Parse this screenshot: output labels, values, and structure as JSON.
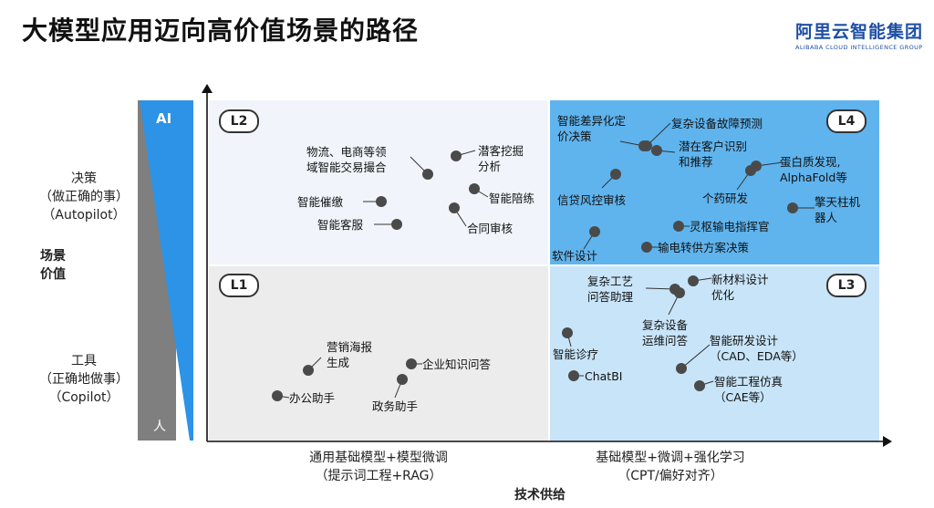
{
  "title": "大模型应用迈向高价值场景的路径",
  "logo": {
    "cn": "阿里云智能集团",
    "en": "ALIBABA CLOUD INTELLIGENCE GROUP"
  },
  "y_axis": {
    "top_lines": [
      "决策",
      "（做正确的事）",
      "（Autopilot）"
    ],
    "name_lines": [
      "场景",
      "价值"
    ],
    "bottom_lines": [
      "工具",
      "（正确地做事）",
      "（Copilot）"
    ],
    "wedge_top": "AI",
    "wedge_bottom": "人"
  },
  "x_axis": {
    "left_lines": [
      "通用基础模型+模型微调",
      "（提示词工程+RAG）"
    ],
    "right_lines": [
      "基础模型+微调+强化学习",
      "（CPT/偏好对齐）"
    ],
    "name": "技术供给"
  },
  "quadrants": {
    "L2": {
      "label": "L2",
      "items": [
        "物流、电商等领",
        "域智能交易撮合",
        "潜客挖掘",
        "分析",
        "智能催缴",
        "智能陪练",
        "智能客服",
        "合同审核"
      ]
    },
    "L4": {
      "label": "L4",
      "items": [
        "智能差异化定",
        "价决策",
        "复杂设备故障预测",
        "潜在客户识别",
        "和推荐",
        "蛋白质发现,",
        "AlphaFold等",
        "信贷风控审核",
        "个药研发",
        "擎天柱机",
        "器人",
        "灵枢输电指挥官",
        "软件设计",
        "输电转供方案决策"
      ]
    },
    "L1": {
      "label": "L1",
      "items": [
        "营销海报",
        "生成",
        "企业知识问答",
        "办公助手",
        "政务助手"
      ]
    },
    "L3": {
      "label": "L3",
      "items": [
        "复杂工艺",
        "问答助理",
        "新材料设计",
        "优化",
        "复杂设备",
        "运维问答",
        "智能诊疗",
        "智能研发设计",
        "（CAD、EDA等）",
        "ChatBI",
        "智能工程仿真",
        "（CAE等）"
      ]
    }
  },
  "colors": {
    "l2_bg": "#f1f5fb",
    "l4_bg": "#5fb4ee",
    "l1_bg": "#ececec",
    "l3_bg": "#c8e4f8",
    "wedge_blue": "#2c93e6",
    "wedge_gray": "#7f7f7f"
  }
}
